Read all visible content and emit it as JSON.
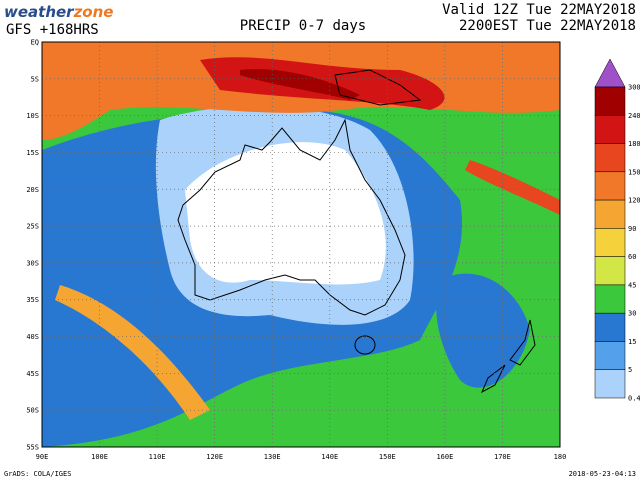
{
  "header": {
    "logo": {
      "part1": "weather",
      "part2": "zone"
    },
    "model": "GFS +168HRS",
    "title": "PRECIP 0-7 days",
    "valid_line1": "Valid 12Z Tue 22MAY2018",
    "valid_line2": "2200EST Tue 22MAY2018"
  },
  "map": {
    "lat_labels": [
      "EQ",
      "5S",
      "10S",
      "15S",
      "20S",
      "25S",
      "30S",
      "35S",
      "40S",
      "45S",
      "50S",
      "55S"
    ],
    "lon_labels": [
      "90E",
      "100E",
      "110E",
      "120E",
      "130E",
      "140E",
      "150E",
      "160E",
      "170E",
      "180"
    ]
  },
  "colorbar": {
    "levels": [
      300,
      240,
      180,
      150,
      120,
      90,
      60,
      45,
      30,
      15,
      5,
      0.4
    ],
    "colors": [
      "#a00000",
      "#d21414",
      "#e8461e",
      "#f07828",
      "#f5a532",
      "#f5d23c",
      "#d2e646",
      "#3cc83c",
      "#2878d2",
      "#55a0eb",
      "#aad2fa"
    ],
    "over_color": "#a050c8"
  },
  "footer": {
    "left": "GrADS: COLA/IGES",
    "right": "2018-05-23-04:13"
  }
}
